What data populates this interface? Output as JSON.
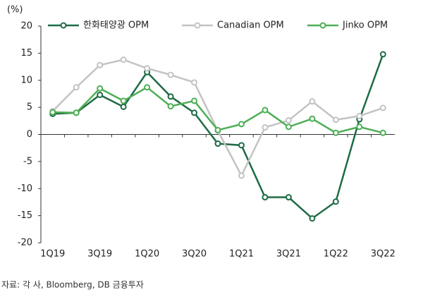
{
  "chart_data": {
    "type": "line",
    "y_label": "(%)",
    "categories": [
      "1Q19",
      null,
      "3Q19",
      null,
      "1Q20",
      null,
      "3Q20",
      null,
      "1Q21",
      null,
      "3Q21",
      null,
      "1Q22",
      null,
      "3Q22"
    ],
    "series": [
      {
        "name": "한화태양광 OPM",
        "color": "#1e6b45",
        "values": [
          3.8,
          4.0,
          7.3,
          5.1,
          11.5,
          7.0,
          4.0,
          -1.7,
          -2.0,
          -11.6,
          -11.6,
          -15.5,
          -12.4,
          2.8,
          14.8
        ]
      },
      {
        "name": "Canadian OPM",
        "color": "#c3c3c3",
        "values": [
          4.3,
          8.7,
          12.8,
          13.8,
          12.2,
          11.0,
          9.6,
          0.7,
          -7.6,
          1.3,
          2.6,
          6.1,
          2.7,
          3.4,
          4.9
        ]
      },
      {
        "name": "Jinko OPM",
        "color": "#4daf55",
        "values": [
          4.1,
          4.0,
          8.5,
          6.2,
          8.7,
          5.2,
          6.2,
          0.8,
          1.9,
          4.5,
          1.4,
          2.9,
          0.3,
          1.4,
          0.3
        ]
      }
    ],
    "ylim": [
      -20,
      20
    ],
    "yticks": [
      20,
      15,
      10,
      5,
      0,
      -5,
      -10,
      -15,
      -20
    ],
    "legend": "top",
    "source": "자료: 각 사, Bloomberg, DB 금융투자"
  }
}
